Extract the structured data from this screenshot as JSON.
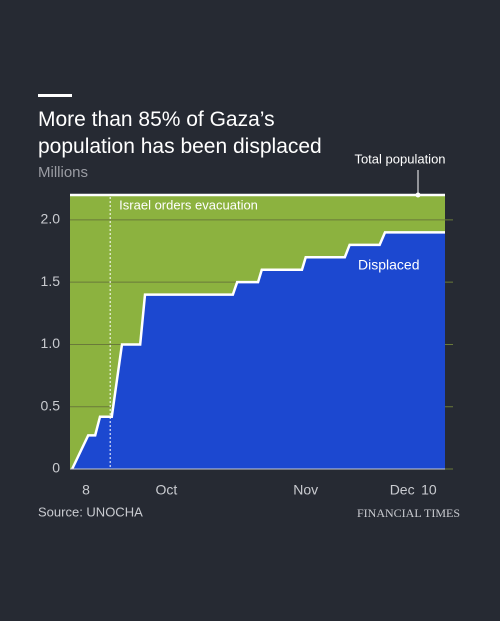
{
  "chart_data": {
    "type": "area",
    "title": "More than 85% of Gaza’s population has been displaced",
    "y_label": "Millions",
    "source": "Source: UNOCHA",
    "publisher": "FINANCIAL TIMES",
    "xlim": [
      0,
      70
    ],
    "xticks": [
      {
        "value": 3,
        "label": "8"
      },
      {
        "value": 18,
        "label": "Oct"
      },
      {
        "value": 44,
        "label": "Nov"
      },
      {
        "value": 62,
        "label": "Dec"
      },
      {
        "value": 67,
        "label": "10"
      }
    ],
    "ylim": [
      0,
      2.2
    ],
    "yticks": [
      0,
      0.5,
      {
        "value": 1,
        "label": "1.0"
      },
      1.5,
      {
        "value": 2,
        "label": "2.0"
      }
    ],
    "grid": true,
    "annotations": [
      {
        "text": "Israel orders evacuation",
        "x": 7.5
      }
    ],
    "series": [
      {
        "name": "Total population",
        "color": "#8cb23f",
        "x": [
          0,
          70
        ],
        "values": [
          2.2,
          2.2
        ]
      },
      {
        "name": "Displaced",
        "color": "#1c48d0",
        "x": [
          0.4,
          3.4,
          4.7,
          5.6,
          7.8,
          9.7,
          13.1,
          14.0,
          30.4,
          31.2,
          35.1,
          35.8,
          43.3,
          44.0,
          51.3,
          52.2,
          57.8,
          58.8,
          70
        ],
        "values": [
          0,
          0.27,
          0.27,
          0.42,
          0.42,
          1.0,
          1.0,
          1.4,
          1.4,
          1.5,
          1.5,
          1.6,
          1.6,
          1.7,
          1.7,
          1.8,
          1.8,
          1.9,
          1.9
        ]
      }
    ]
  }
}
